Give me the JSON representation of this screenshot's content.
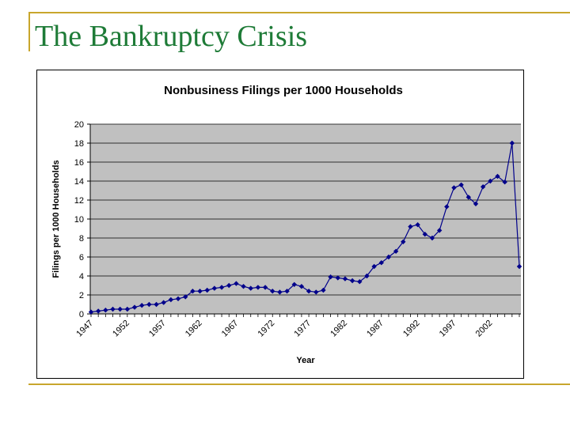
{
  "slide": {
    "title": "The Bankruptcy Crisis"
  },
  "colors": {
    "accent_rule": "#c8a62c",
    "title": "#1e7b37",
    "series": "#00008b",
    "plot_bg": "#c0c0c0"
  },
  "chart_data": {
    "type": "line",
    "title": "Nonbusiness Filings per 1000 Households",
    "xlabel": "Year",
    "ylabel": "Filings per 1000 Households",
    "x": [
      1947,
      1948,
      1949,
      1950,
      1951,
      1952,
      1953,
      1954,
      1955,
      1956,
      1957,
      1958,
      1959,
      1960,
      1961,
      1962,
      1963,
      1964,
      1965,
      1966,
      1967,
      1968,
      1969,
      1970,
      1971,
      1972,
      1973,
      1974,
      1975,
      1976,
      1977,
      1978,
      1979,
      1980,
      1981,
      1982,
      1983,
      1984,
      1985,
      1986,
      1987,
      1988,
      1989,
      1990,
      1991,
      1992,
      1993,
      1994,
      1995,
      1996,
      1997,
      1998,
      1999,
      2000,
      2001,
      2002,
      2003,
      2004,
      2005,
      2006
    ],
    "series": [
      {
        "values": [
          0.2,
          0.3,
          0.4,
          0.5,
          0.5,
          0.5,
          0.7,
          0.9,
          1.0,
          1.0,
          1.2,
          1.5,
          1.6,
          1.8,
          2.4,
          2.4,
          2.5,
          2.7,
          2.8,
          3.0,
          3.2,
          2.9,
          2.7,
          2.8,
          2.8,
          2.4,
          2.3,
          2.4,
          3.1,
          2.9,
          2.4,
          2.3,
          2.5,
          3.9,
          3.8,
          3.7,
          3.5,
          3.4,
          4.0,
          5.0,
          5.4,
          6.0,
          6.6,
          7.6,
          9.2,
          9.4,
          8.4,
          8.0,
          8.8,
          11.3,
          13.3,
          13.6,
          12.3,
          11.6,
          13.4,
          14.0,
          14.5,
          13.9,
          18.0,
          5.0
        ]
      }
    ],
    "xticks": [
      "1947",
      "1952",
      "1957",
      "1962",
      "1967",
      "1972",
      "1977",
      "1982",
      "1987",
      "1992",
      "1997",
      "2002"
    ],
    "yticks": [
      "0",
      "2",
      "4",
      "6",
      "8",
      "10",
      "12",
      "14",
      "16",
      "18",
      "20"
    ],
    "ylim": [
      0,
      20
    ],
    "grid": true,
    "legend": "none"
  }
}
